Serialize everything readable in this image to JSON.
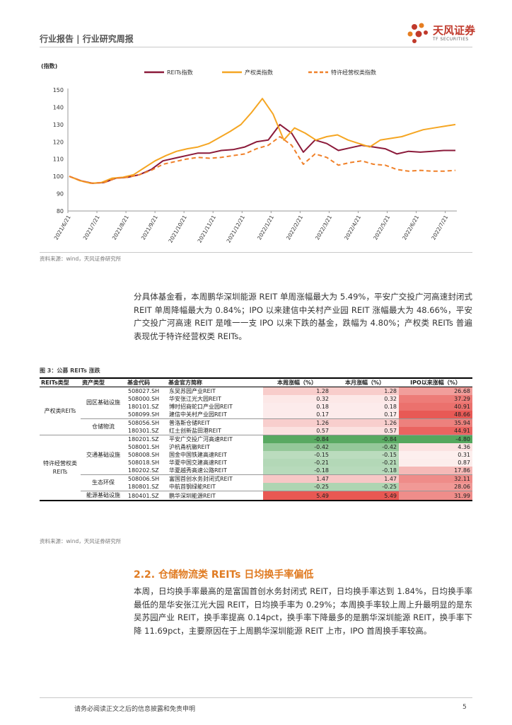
{
  "header": {
    "section": "行业报告 | 行业研究周报",
    "brand": "天风证券",
    "brand_sub": "TF SECURITIES"
  },
  "chart_data": {
    "type": "line",
    "ylabel": "(指数)",
    "ylim": [
      80,
      150
    ],
    "yticks": [
      80,
      90,
      100,
      110,
      120,
      130,
      140,
      150
    ],
    "xticks": [
      "2021/6/21",
      "2021/7/21",
      "2021/8/21",
      "2021/9/21",
      "2021/10/21",
      "2021/11/21",
      "2021/12/21",
      "2022/1/21",
      "2022/2/21",
      "2022/3/21",
      "2022/4/21",
      "2022/5/21",
      "2022/6/21",
      "2022/7/21"
    ],
    "series": [
      {
        "name": "REITs指数",
        "color": "#8b1a3a",
        "dash": false,
        "values": [
          100,
          97.5,
          96,
          96.5,
          99,
          99.5,
          101,
          104,
          109,
          110.5,
          112,
          113.5,
          113.5,
          115,
          115.5,
          117,
          120,
          121,
          130,
          125,
          114,
          121,
          119,
          115,
          116.5,
          118,
          117,
          116,
          113,
          114.5,
          114,
          114.5,
          115,
          115
        ]
      },
      {
        "name": "产权类指数",
        "color": "#f5a623",
        "dash": false,
        "values": [
          100,
          97.5,
          96,
          96.5,
          99,
          99.5,
          101,
          105,
          109,
          112,
          114.5,
          116,
          117,
          119,
          122.5,
          126,
          130,
          137,
          145,
          136,
          121,
          128,
          125,
          121,
          123,
          124,
          121,
          119,
          117,
          121,
          122,
          123,
          125,
          127,
          128,
          129,
          130
        ]
      },
      {
        "name": "特许经营权类指数",
        "color": "#f0812a",
        "dash": true,
        "values": [
          100,
          97.5,
          96,
          96.5,
          99,
          99.5,
          101,
          103.5,
          107,
          108.5,
          110,
          111,
          110.5,
          111,
          112,
          113,
          116,
          118,
          123,
          118,
          107,
          113,
          111,
          106.5,
          108,
          109,
          107,
          106.5,
          104,
          103,
          103.5,
          103,
          103,
          103.5
        ]
      }
    ]
  },
  "chart_source": "资料来源：wind，天风证券研究所",
  "paragraph1": "分具体基金看，本周鹏华深圳能源 REIT 单周涨幅最大为 5.49%，平安广交投广河高速封闭式 REIT 单周降幅最大为 0.84%；IPO 以来建信中关村产业园 REIT 涨幅最大为 48.66%，平安广交投广河高速 REIT 是唯一一支 IPO 以来下跌的基金，跌幅为 4.80%；产权类 REITs 普遍表现优于特许经营权类 REITs。",
  "table_title": "图 3：公募 REITs 涨跌",
  "table": {
    "headers": [
      "REITs类型",
      "资产类型",
      "基金代码",
      "基金官方简称",
      "本周涨幅（%）",
      "本月涨幅（%）",
      "IPO以来涨幅（%）"
    ],
    "groups": {
      "property": "产权类REITs",
      "franchise": "特许经营权类REITs"
    },
    "rows": [
      {
        "asset": "园区基础设施",
        "code": "508027.SH",
        "name": "东吴苏园产业REIT",
        "week": "1.28",
        "month": "1.28",
        "ipo": "26.68"
      },
      {
        "asset": "",
        "code": "508000.SH",
        "name": "华安张江光大园REIT",
        "week": "0.32",
        "month": "0.32",
        "ipo": "37.29"
      },
      {
        "asset": "",
        "code": "180101.SZ",
        "name": "博时招商蛇口产业园REIT",
        "week": "0.18",
        "month": "0.18",
        "ipo": "40.91"
      },
      {
        "asset": "",
        "code": "508099.SH",
        "name": "建信中关村产业园REIT",
        "week": "0.17",
        "month": "0.17",
        "ipo": "48.66"
      },
      {
        "asset": "仓储物流",
        "code": "508056.SH",
        "name": "普洛斯仓储REIT",
        "week": "1.26",
        "month": "1.26",
        "ipo": "35.94"
      },
      {
        "asset": "",
        "code": "180301.SZ",
        "name": "红土创新盐田港REIT",
        "week": "0.57",
        "month": "0.57",
        "ipo": "44.91"
      },
      {
        "asset": "交通基础设施",
        "code": "180201.SZ",
        "name": "平安广交投广河高速REIT",
        "week": "-0.84",
        "month": "-0.84",
        "ipo": "-4.80"
      },
      {
        "asset": "",
        "code": "508001.SH",
        "name": "沪杭甬杭徽REIT",
        "week": "-0.42",
        "month": "-0.42",
        "ipo": "4.36"
      },
      {
        "asset": "",
        "code": "508008.SH",
        "name": "国金中国铁建高速REIT",
        "week": "-0.15",
        "month": "-0.15",
        "ipo": "0.31"
      },
      {
        "asset": "",
        "code": "508018.SH",
        "name": "华夏中国交建高速REIT",
        "week": "-0.21",
        "month": "-0.21",
        "ipo": "0.87"
      },
      {
        "asset": "",
        "code": "180202.SZ",
        "name": "华夏越秀高速公路REIT",
        "week": "-0.18",
        "month": "-0.18",
        "ipo": "17.86"
      },
      {
        "asset": "生态环保",
        "code": "508006.SH",
        "name": "富国首创水务封闭式REIT",
        "week": "1.47",
        "month": "1.47",
        "ipo": "32.11"
      },
      {
        "asset": "",
        "code": "180801.SZ",
        "name": "中航首钢绿能REIT",
        "week": "-0.25",
        "month": "-0.25",
        "ipo": "28.06"
      },
      {
        "asset": "能源基础设施",
        "code": "180401.SZ",
        "name": "鹏华深圳能源REIT",
        "week": "5.49",
        "month": "5.49",
        "ipo": "31.99"
      }
    ]
  },
  "table_source": "资料来源：wind，天风证券研究所",
  "section_title": "2.2. 仓储物流类 REITs 日均换手率偏低",
  "paragraph2": "本周，日均换手率最高的是富国首创水务封闭式 REIT，日均换手率达到 1.84%，日均换手率最低的是华安张江光大园 REIT，日均换手率为 0.29%；本周换手率较上周上升最明显的是东吴苏园产业 REIT，换手率提高 0.14pct，换手率下降最多的是鹏华深圳能源 REIT，换手率下降 11.69pct，主要原因在于上周鹏华深圳能源 REIT 上市，IPO 首周换手率较高。",
  "footer": {
    "disclaimer": "请务必阅读正文之后的信息披露和免责申明",
    "page": "5"
  }
}
